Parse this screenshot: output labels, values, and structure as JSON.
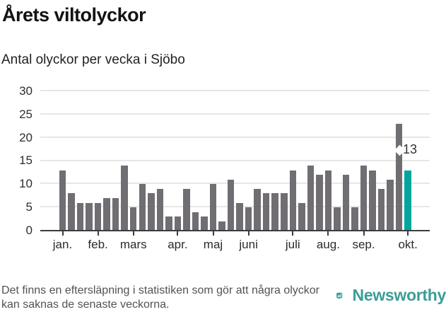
{
  "header": {
    "title": "Årets viltolyckor",
    "subtitle": "Antal olyckor per vecka i Sjöbo"
  },
  "chart_data": {
    "type": "bar",
    "title": "Årets viltolyckor",
    "subtitle": "Antal olyckor per vecka i Sjöbo",
    "values": [
      13,
      8,
      6,
      6,
      6,
      7,
      7,
      14,
      5,
      10,
      8,
      9,
      3,
      3,
      9,
      4,
      3,
      10,
      2,
      11,
      6,
      5,
      9,
      8,
      8,
      8,
      13,
      6,
      14,
      12,
      13,
      5,
      12,
      5,
      14,
      13,
      9,
      11,
      23,
      13
    ],
    "month_ticks": [
      {
        "index": 0,
        "label": "jan."
      },
      {
        "index": 4,
        "label": "feb."
      },
      {
        "index": 8,
        "label": "mars"
      },
      {
        "index": 13,
        "label": "apr."
      },
      {
        "index": 17,
        "label": "maj"
      },
      {
        "index": 21,
        "label": "juni"
      },
      {
        "index": 26,
        "label": "juli"
      },
      {
        "index": 30,
        "label": "aug."
      },
      {
        "index": 34,
        "label": "sep."
      },
      {
        "index": 39,
        "label": "okt."
      }
    ],
    "ylim": [
      0,
      30
    ],
    "yticks": [
      0,
      5,
      10,
      15,
      20,
      25,
      30
    ],
    "grid": "horizontal",
    "legend": "none",
    "bar_color": "#706d73",
    "highlight_color": "#00a69d",
    "highlight_index": 39,
    "annotation": {
      "text": "13",
      "target_index": 39
    }
  },
  "footer": {
    "note": "Det finns en eftersläpning i statistiken som gör att några olyckor kan saknas de senaste veckorna.",
    "brand": "Newsworthy",
    "brand_color": "#3b9d96",
    "icon_color": "#2f9e97"
  }
}
